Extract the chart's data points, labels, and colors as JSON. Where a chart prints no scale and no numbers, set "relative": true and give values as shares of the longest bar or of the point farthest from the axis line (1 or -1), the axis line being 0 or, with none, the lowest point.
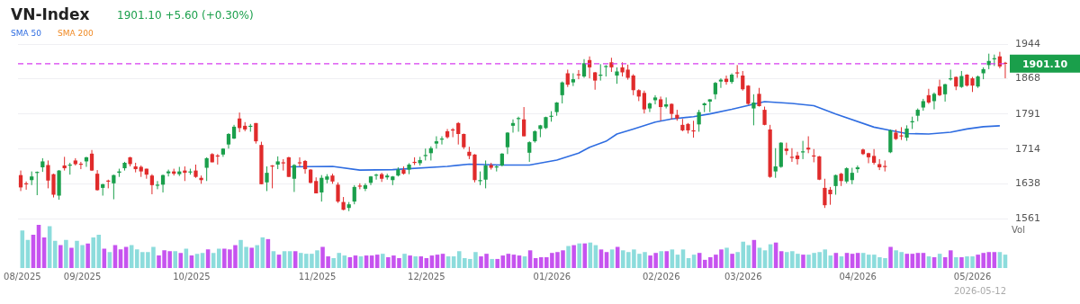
{
  "chart_data": [
    {
      "type": "candlestick",
      "title": "VN-Index",
      "subtitle": "1901.10 +5.60 (+0.30%)",
      "categories": [
        null,
        null,
        null,
        null,
        null,
        null,
        null,
        null,
        null,
        null,
        null,
        null,
        null,
        null,
        null,
        null,
        null,
        null,
        null,
        null,
        null,
        null,
        null,
        null,
        null,
        null,
        null,
        null,
        null,
        null,
        null,
        null,
        null,
        null,
        null,
        null,
        null,
        null,
        null,
        null,
        null,
        null,
        null,
        null,
        null,
        null,
        null,
        null,
        null,
        null,
        null,
        null,
        null,
        null,
        null,
        null,
        null,
        null,
        null,
        null,
        null,
        null,
        null,
        null,
        null,
        null,
        null,
        null,
        null,
        null,
        null,
        null,
        null,
        null,
        null,
        null,
        null,
        null,
        null,
        null,
        null,
        null,
        null,
        null,
        null,
        null,
        null,
        null,
        null,
        null,
        null,
        null,
        null,
        null,
        null,
        null,
        null,
        null,
        null,
        null,
        null,
        null,
        null,
        null,
        null,
        null,
        null,
        null,
        null,
        null,
        null,
        null,
        null,
        null,
        null,
        null,
        null,
        null,
        null,
        null,
        null,
        null,
        null,
        null,
        null,
        null,
        null,
        null,
        null,
        null,
        null,
        null,
        null,
        null,
        null,
        null,
        null,
        null,
        null,
        null,
        null,
        null,
        null,
        null,
        null,
        null,
        null,
        null,
        null,
        null,
        null,
        null,
        null,
        null,
        null,
        null,
        null,
        null,
        null,
        null,
        null,
        null,
        null,
        null,
        null,
        null,
        null,
        null,
        null,
        null,
        null,
        null,
        null,
        null,
        null,
        null,
        null,
        null,
        null,
        null,
        null
      ],
      "ohlc": [
        [
          1657,
          1667,
          1622,
          1630
        ],
        [
          1639,
          1643,
          1625,
          1637
        ],
        [
          1646,
          1665,
          1635,
          1654
        ],
        [
          1662,
          1665,
          1613,
          1664
        ],
        [
          1674,
          1694,
          1664,
          1687
        ],
        [
          1679,
          1689,
          1628,
          1645
        ],
        [
          1659,
          1660,
          1608,
          1614
        ],
        [
          1612,
          1668,
          1603,
          1667
        ],
        [
          1678,
          1697,
          1667,
          1672
        ],
        [
          1678,
          1684,
          1658,
          1680
        ],
        [
          1689,
          1694,
          1678,
          1681
        ],
        [
          1682,
          1686,
          1670,
          1680
        ],
        [
          1687,
          1697,
          1675,
          1696
        ],
        [
          1704,
          1712,
          1666,
          1667
        ],
        [
          1660,
          1668,
          1623,
          1624
        ],
        [
          1629,
          1638,
          1612,
          1637
        ],
        [
          1645,
          1647,
          1628,
          1643
        ],
        [
          1639,
          1658,
          1604,
          1657
        ],
        [
          1662,
          1671,
          1653,
          1665
        ],
        [
          1672,
          1686,
          1667,
          1684
        ],
        [
          1696,
          1697,
          1676,
          1681
        ],
        [
          1676,
          1684,
          1663,
          1670
        ],
        [
          1675,
          1678,
          1653,
          1665
        ],
        [
          1671,
          1671,
          1649,
          1658
        ],
        [
          1656,
          1659,
          1615,
          1635
        ],
        [
          1634,
          1644,
          1626,
          1636
        ],
        [
          1636,
          1658,
          1619,
          1657
        ],
        [
          1661,
          1669,
          1654,
          1665
        ],
        [
          1665,
          1671,
          1656,
          1660
        ],
        [
          1659,
          1675,
          1655,
          1665
        ],
        [
          1667,
          1676,
          1644,
          1662
        ],
        [
          1663,
          1671,
          1658,
          1665
        ],
        [
          1667,
          1680,
          1651,
          1653
        ],
        [
          1651,
          1656,
          1638,
          1646
        ],
        [
          1673,
          1696,
          1644,
          1694
        ],
        [
          1703,
          1705,
          1685,
          1685
        ],
        [
          1700,
          1703,
          1680,
          1698
        ],
        [
          1702,
          1716,
          1697,
          1715
        ],
        [
          1724,
          1749,
          1715,
          1747
        ],
        [
          1737,
          1767,
          1736,
          1763
        ],
        [
          1781,
          1794,
          1751,
          1760
        ],
        [
          1765,
          1773,
          1753,
          1757
        ],
        [
          1764,
          1769,
          1752,
          1765
        ],
        [
          1771,
          1771,
          1726,
          1731
        ],
        [
          1723,
          1730,
          1637,
          1637
        ],
        [
          1641,
          1676,
          1622,
          1662
        ],
        [
          1678,
          1679,
          1628,
          1676
        ],
        [
          1680,
          1698,
          1670,
          1687
        ],
        [
          1685,
          1692,
          1667,
          1684
        ],
        [
          1696,
          1697,
          1653,
          1653
        ],
        [
          1649,
          1681,
          1620,
          1679
        ],
        [
          1685,
          1696,
          1676,
          1684
        ],
        [
          1688,
          1690,
          1660,
          1670
        ],
        [
          1669,
          1670,
          1639,
          1640
        ],
        [
          1644,
          1652,
          1617,
          1617
        ],
        [
          1619,
          1657,
          1599,
          1651
        ],
        [
          1647,
          1659,
          1639,
          1654
        ],
        [
          1656,
          1660,
          1638,
          1643
        ],
        [
          1636,
          1641,
          1596,
          1599
        ],
        [
          1598,
          1609,
          1580,
          1581
        ],
        [
          1585,
          1598,
          1578,
          1593
        ],
        [
          1599,
          1635,
          1593,
          1631
        ],
        [
          1634,
          1639,
          1626,
          1632
        ],
        [
          1627,
          1639,
          1622,
          1635
        ],
        [
          1640,
          1655,
          1635,
          1654
        ],
        [
          1657,
          1660,
          1647,
          1658
        ],
        [
          1659,
          1662,
          1642,
          1649
        ],
        [
          1652,
          1660,
          1647,
          1656
        ],
        [
          1646,
          1655,
          1635,
          1654
        ],
        [
          1656,
          1674,
          1654,
          1669
        ],
        [
          1669,
          1676,
          1658,
          1660
        ],
        [
          1669,
          1683,
          1659,
          1680
        ],
        [
          1686,
          1696,
          1679,
          1685
        ],
        [
          1683,
          1697,
          1678,
          1690
        ],
        [
          1700,
          1715,
          1689,
          1701
        ],
        [
          1705,
          1720,
          1689,
          1716
        ],
        [
          1726,
          1742,
          1715,
          1731
        ],
        [
          1736,
          1742,
          1724,
          1737
        ],
        [
          1753,
          1758,
          1737,
          1740
        ],
        [
          1757,
          1760,
          1740,
          1755
        ],
        [
          1771,
          1773,
          1724,
          1747
        ],
        [
          1747,
          1748,
          1714,
          1718
        ],
        [
          1708,
          1719,
          1692,
          1699
        ],
        [
          1702,
          1703,
          1641,
          1646
        ],
        [
          1645,
          1665,
          1635,
          1646
        ],
        [
          1647,
          1689,
          1628,
          1678
        ],
        [
          1679,
          1684,
          1669,
          1673
        ],
        [
          1675,
          1678,
          1665,
          1676
        ],
        [
          1678,
          1705,
          1676,
          1704
        ],
        [
          1718,
          1751,
          1703,
          1750
        ],
        [
          1765,
          1779,
          1750,
          1771
        ],
        [
          1781,
          1785,
          1752,
          1782
        ],
        [
          1779,
          1806,
          1742,
          1742
        ],
        [
          1706,
          1731,
          1686,
          1729
        ],
        [
          1731,
          1755,
          1728,
          1753
        ],
        [
          1758,
          1767,
          1740,
          1766
        ],
        [
          1760,
          1785,
          1758,
          1784
        ],
        [
          1786,
          1797,
          1774,
          1787
        ],
        [
          1795,
          1817,
          1787,
          1816
        ],
        [
          1832,
          1862,
          1814,
          1860
        ],
        [
          1880,
          1888,
          1850,
          1855
        ],
        [
          1860,
          1880,
          1852,
          1867
        ],
        [
          1878,
          1887,
          1867,
          1877
        ],
        [
          1873,
          1911,
          1870,
          1902
        ],
        [
          1909,
          1917,
          1869,
          1893
        ],
        [
          1882,
          1883,
          1844,
          1864
        ],
        [
          1875,
          1900,
          1864,
          1877
        ],
        [
          1894,
          1898,
          1873,
          1896
        ],
        [
          1904,
          1914,
          1883,
          1893
        ],
        [
          1875,
          1893,
          1857,
          1884
        ],
        [
          1893,
          1904,
          1873,
          1882
        ],
        [
          1888,
          1899,
          1866,
          1870
        ],
        [
          1875,
          1878,
          1832,
          1843
        ],
        [
          1843,
          1845,
          1819,
          1829
        ],
        [
          1837,
          1842,
          1792,
          1801
        ],
        [
          1803,
          1816,
          1795,
          1814
        ],
        [
          1821,
          1832,
          1812,
          1827
        ],
        [
          1823,
          1829,
          1776,
          1806
        ],
        [
          1807,
          1827,
          1803,
          1812
        ],
        [
          1813,
          1814,
          1779,
          1791
        ],
        [
          1789,
          1800,
          1776,
          1781
        ],
        [
          1767,
          1780,
          1753,
          1755
        ],
        [
          1769,
          1771,
          1748,
          1755
        ],
        [
          1755,
          1776,
          1739,
          1753
        ],
        [
          1768,
          1800,
          1752,
          1795
        ],
        [
          1810,
          1816,
          1795,
          1814
        ],
        [
          1818,
          1823,
          1795,
          1823
        ],
        [
          1834,
          1861,
          1823,
          1859
        ],
        [
          1862,
          1869,
          1848,
          1866
        ],
        [
          1868,
          1875,
          1855,
          1861
        ],
        [
          1861,
          1880,
          1857,
          1877
        ],
        [
          1882,
          1898,
          1870,
          1881
        ],
        [
          1875,
          1885,
          1842,
          1845
        ],
        [
          1853,
          1854,
          1811,
          1813
        ],
        [
          1803,
          1834,
          1766,
          1816
        ],
        [
          1835,
          1848,
          1807,
          1808
        ],
        [
          1800,
          1807,
          1766,
          1767
        ],
        [
          1757,
          1767,
          1651,
          1653
        ],
        [
          1665,
          1716,
          1651,
          1676
        ],
        [
          1675,
          1729,
          1673,
          1728
        ],
        [
          1715,
          1728,
          1701,
          1710
        ],
        [
          1697,
          1716,
          1686,
          1696
        ],
        [
          1700,
          1708,
          1680,
          1692
        ],
        [
          1708,
          1732,
          1692,
          1709
        ],
        [
          1717,
          1742,
          1705,
          1713
        ],
        [
          1700,
          1714,
          1685,
          1699
        ],
        [
          1698,
          1699,
          1646,
          1647
        ],
        [
          1629,
          1649,
          1585,
          1591
        ],
        [
          1625,
          1631,
          1592,
          1615
        ],
        [
          1633,
          1658,
          1614,
          1657
        ],
        [
          1660,
          1662,
          1633,
          1644
        ],
        [
          1643,
          1674,
          1639,
          1672
        ],
        [
          1646,
          1673,
          1637,
          1662
        ],
        [
          1670,
          1678,
          1662,
          1674
        ],
        [
          1713,
          1715,
          1701,
          1703
        ],
        [
          1705,
          1706,
          1683,
          1696
        ],
        [
          1699,
          1714,
          1680,
          1684
        ],
        [
          1681,
          1692,
          1668,
          1674
        ],
        [
          1677,
          1689,
          1665,
          1676
        ],
        [
          1707,
          1757,
          1705,
          1755
        ],
        [
          1750,
          1757,
          1734,
          1736
        ],
        [
          1744,
          1762,
          1734,
          1743
        ],
        [
          1739,
          1766,
          1732,
          1759
        ],
        [
          1774,
          1785,
          1758,
          1775
        ],
        [
          1787,
          1803,
          1775,
          1800
        ],
        [
          1805,
          1824,
          1798,
          1819
        ],
        [
          1832,
          1846,
          1813,
          1816
        ],
        [
          1819,
          1838,
          1801,
          1835
        ],
        [
          1851,
          1866,
          1830,
          1832
        ],
        [
          1834,
          1857,
          1818,
          1856
        ],
        [
          1868,
          1888,
          1864,
          1869
        ],
        [
          1872,
          1873,
          1843,
          1851
        ],
        [
          1850,
          1885,
          1848,
          1874
        ],
        [
          1877,
          1878,
          1851,
          1853
        ],
        [
          1869,
          1872,
          1839,
          1853
        ],
        [
          1851,
          1875,
          1848,
          1873
        ],
        [
          1880,
          1893,
          1867,
          1889
        ],
        [
          1898,
          1923,
          1889,
          1907
        ],
        [
          1911,
          1921,
          1896,
          1913
        ],
        [
          1917,
          1927,
          1891,
          1895
        ],
        [
          1903,
          1905,
          1869,
          1901.1
        ]
      ],
      "colors": [
        "#e02b2b",
        "#e02b2b",
        "#1a9f4b",
        "#1a9f4b",
        "#1a9f4b",
        "#e02b2b",
        "#e02b2b",
        "#1a9f4b",
        "#e02b2b",
        "#1a9f4b",
        "#e02b2b",
        "#e02b2b",
        "#1a9f4b",
        "#e02b2b",
        "#e02b2b",
        "#1a9f4b",
        "#e02b2b",
        "#1a9f4b",
        "#1a9f4b",
        "#1a9f4b",
        "#e02b2b",
        "#e02b2b",
        "#e02b2b",
        "#e02b2b",
        "#e02b2b",
        "#1a9f4b",
        "#1a9f4b",
        "#1a9f4b",
        "#e02b2b",
        "#1a9f4b",
        "#e02b2b",
        "#1a9f4b",
        "#e02b2b",
        "#e02b2b",
        "#1a9f4b",
        "#e02b2b",
        "#e02b2b",
        "#1a9f4b",
        "#1a9f4b",
        "#1a9f4b",
        "#e02b2b",
        "#e02b2b",
        "#1a9f4b",
        "#e02b2b",
        "#e02b2b",
        "#1a9f4b",
        "#e02b2b",
        "#1a9f4b",
        "#e02b2b",
        "#e02b2b",
        "#1a9f4b",
        "#e02b2b",
        "#e02b2b",
        "#e02b2b",
        "#e02b2b",
        "#1a9f4b",
        "#1a9f4b",
        "#e02b2b",
        "#e02b2b",
        "#e02b2b",
        "#1a9f4b",
        "#1a9f4b",
        "#e02b2b",
        "#1a9f4b",
        "#1a9f4b",
        "#1a9f4b",
        "#e02b2b",
        "#1a9f4b",
        "#1a9f4b",
        "#1a9f4b",
        "#e02b2b",
        "#1a9f4b",
        "#e02b2b",
        "#1a9f4b",
        "#1a9f4b",
        "#1a9f4b",
        "#1a9f4b",
        "#1a9f4b",
        "#e02b2b",
        "#e02b2b",
        "#e02b2b",
        "#e02b2b",
        "#e02b2b",
        "#e02b2b",
        "#1a9f4b",
        "#1a9f4b",
        "#e02b2b",
        "#1a9f4b",
        "#1a9f4b",
        "#1a9f4b",
        "#1a9f4b",
        "#1a9f4b",
        "#e02b2b",
        "#1a9f4b",
        "#1a9f4b",
        "#1a9f4b",
        "#1a9f4b",
        "#1a9f4b",
        "#1a9f4b",
        "#1a9f4b",
        "#e02b2b",
        "#1a9f4b",
        "#e02b2b",
        "#1a9f4b",
        "#e02b2b",
        "#e02b2b",
        "#1a9f4b",
        "#1a9f4b",
        "#e02b2b",
        "#1a9f4b",
        "#e02b2b",
        "#e02b2b",
        "#e02b2b",
        "#e02b2b",
        "#e02b2b",
        "#1a9f4b",
        "#1a9f4b",
        "#e02b2b",
        "#1a9f4b",
        "#e02b2b",
        "#e02b2b",
        "#e02b2b",
        "#e02b2b",
        "#e02b2b",
        "#1a9f4b",
        "#1a9f4b",
        "#1a9f4b",
        "#1a9f4b",
        "#1a9f4b",
        "#e02b2b",
        "#1a9f4b",
        "#e02b2b",
        "#e02b2b",
        "#e02b2b",
        "#1a9f4b",
        "#e02b2b",
        "#e02b2b",
        "#e02b2b",
        "#1a9f4b",
        "#1a9f4b",
        "#e02b2b",
        "#e02b2b",
        "#e02b2b",
        "#1a9f4b",
        "#e02b2b",
        "#e02b2b",
        "#e02b2b",
        "#e02b2b",
        "#e02b2b",
        "#1a9f4b",
        "#e02b2b",
        "#1a9f4b",
        "#1a9f4b",
        "#1a9f4b",
        "#e02b2b",
        "#e02b2b",
        "#e02b2b",
        "#e02b2b",
        "#e02b2b",
        "#1a9f4b",
        "#e02b2b",
        "#e02b2b",
        "#1a9f4b",
        "#1a9f4b",
        "#1a9f4b",
        "#1a9f4b",
        "#e02b2b",
        "#1a9f4b",
        "#e02b2b",
        "#1a9f4b",
        "#1a9f4b",
        "#e02b2b",
        "#1a9f4b",
        "#e02b2b",
        "#e02b2b",
        "#1a9f4b",
        "#1a9f4b",
        "#1a9f4b",
        "#1a9f4b",
        "#e02b2b",
        "#e02b2b"
      ],
      "series": [
        {
          "name": "SMA 50",
          "type": "line",
          "color": "#2f6de1",
          "values": [
            null,
            null,
            null,
            null,
            null,
            null,
            null,
            null,
            null,
            null,
            null,
            null,
            null,
            null,
            null,
            null,
            null,
            null,
            null,
            null,
            null,
            null,
            null,
            null,
            null,
            null,
            null,
            null,
            null,
            null,
            null,
            null,
            null,
            null,
            null,
            null,
            null,
            null,
            null,
            null,
            null,
            null,
            null,
            null,
            null,
            null,
            null,
            null,
            null,
            1675,
            null,
            null,
            null,
            null,
            null,
            null,
            null,
            1676,
            null,
            null,
            null,
            null,
            1668,
            null,
            null,
            null,
            null,
            null,
            1669,
            null,
            null,
            null,
            null,
            null,
            null,
            null,
            null,
            null,
            1676,
            null,
            null,
            null,
            1681,
            null,
            null,
            null,
            null,
            null,
            1679,
            null,
            null,
            null,
            null,
            1679,
            null,
            null,
            null,
            null,
            1690,
            null,
            null,
            null,
            1705,
            null,
            1718,
            null,
            null,
            1731,
            null,
            1747,
            null,
            null,
            1758,
            null,
            null,
            null,
            1773,
            null,
            null,
            1780,
            null,
            null,
            null,
            1785,
            null,
            null,
            1791,
            null,
            null,
            null,
            1801,
            null,
            null,
            null,
            null,
            null,
            1818,
            null,
            null,
            null,
            null,
            1814,
            null,
            null,
            null,
            1809,
            null,
            null,
            null,
            1791,
            null,
            null,
            null,
            null,
            null,
            null,
            1762,
            null,
            null,
            1755,
            null,
            null,
            1748,
            null,
            null,
            null,
            1747,
            null,
            null,
            null,
            1751,
            null,
            null,
            1758,
            null,
            null,
            1763,
            null,
            null,
            1765,
            null
          ]
        },
        {
          "name": "SMA 200",
          "type": "line",
          "color": "#f08a24",
          "values": [
            null,
            null,
            null,
            null,
            null,
            null,
            null,
            null,
            null,
            null,
            null,
            null,
            null,
            null,
            null,
            null,
            null,
            null,
            null,
            null,
            null,
            null,
            null,
            null,
            null,
            null,
            null,
            null,
            null,
            null,
            null,
            null,
            null,
            null,
            null,
            null,
            null,
            null,
            null,
            null,
            null,
            null,
            null,
            null,
            null,
            null,
            null,
            null,
            null,
            null,
            null,
            null,
            null,
            null,
            null,
            null,
            null,
            null,
            null,
            null,
            null,
            null,
            null,
            null,
            null,
            null,
            null,
            null,
            null,
            null,
            null,
            null,
            null,
            null,
            null,
            null,
            null,
            null,
            null,
            null,
            null,
            null,
            null,
            null,
            null,
            null,
            null,
            null,
            null,
            null,
            null,
            null,
            null,
            null,
            null,
            null,
            null,
            null,
            null,
            null,
            null,
            null,
            null,
            null,
            null,
            null,
            null,
            null,
            null,
            null,
            null,
            null,
            null,
            null,
            null,
            null,
            null,
            null,
            null,
            null,
            null,
            null,
            null,
            null,
            null,
            null,
            null,
            null,
            null,
            null,
            null,
            null,
            null,
            null,
            null,
            null,
            null,
            null,
            null,
            null,
            null,
            null,
            null,
            null,
            null,
            null,
            null,
            null,
            null,
            null,
            null,
            null,
            null,
            null,
            null,
            null,
            null,
            null,
            null,
            null,
            null,
            null,
            null,
            null,
            null,
            null,
            null,
            null,
            null,
            null,
            null,
            null,
            null,
            null,
            null,
            null,
            null,
            null,
            null,
            null,
            null
          ]
        }
      ],
      "ref_lines": [
        {
          "axis": "y",
          "value": 1901.1,
          "label": "1901.10",
          "color": "#d63cf0",
          "line_style": "dashed"
        }
      ],
      "ylim": [
        1561,
        1944
      ],
      "yticks": [
        1561,
        1638,
        1714,
        1791,
        1868,
        1944
      ],
      "tick_labels": "y",
      "grid": "y",
      "legend": "top left"
    },
    {
      "type": "bar",
      "relative": true,
      "ylabel": "Vol",
      "annotations": [
        "2026-05-12"
      ],
      "categories": [
        "08/2025",
        null,
        null,
        null,
        null,
        null,
        null,
        null,
        null,
        null,
        null,
        "09/2025",
        null,
        null,
        null,
        null,
        null,
        null,
        null,
        null,
        null,
        null,
        null,
        null,
        null,
        null,
        null,
        null,
        null,
        null,
        null,
        "10/2025",
        null,
        null,
        null,
        null,
        null,
        null,
        null,
        null,
        null,
        null,
        null,
        null,
        null,
        null,
        null,
        null,
        null,
        null,
        null,
        null,
        null,
        null,
        "11/2025",
        null,
        null,
        null,
        null,
        null,
        null,
        null,
        null,
        null,
        null,
        null,
        null,
        null,
        null,
        null,
        null,
        null,
        null,
        null,
        "12/2025",
        null,
        null,
        null,
        null,
        null,
        null,
        null,
        null,
        null,
        null,
        null,
        null,
        null,
        null,
        null,
        null,
        null,
        null,
        null,
        null,
        null,
        null,
        "01/2026",
        null,
        null,
        null,
        null,
        null,
        null,
        null,
        null,
        null,
        null,
        null,
        null,
        null,
        null,
        null,
        null,
        null,
        null,
        null,
        "02/2026",
        null,
        null,
        null,
        null,
        null,
        null,
        null,
        null,
        null,
        null,
        null,
        null,
        null,
        null,
        "03/2026",
        null,
        null,
        null,
        null,
        null,
        null,
        null,
        null,
        null,
        null,
        null,
        null,
        null,
        null,
        null,
        null,
        null,
        null,
        null,
        null,
        "04/2026",
        null,
        null,
        null,
        null,
        null,
        null,
        null,
        null,
        null,
        null,
        null,
        null,
        null,
        null,
        null,
        null,
        null,
        null,
        null,
        null,
        "05/2026",
        null,
        null,
        null,
        null,
        null,
        null
      ],
      "values": [
        0.87,
        0.65,
        0.77,
        1,
        0.71,
        0.97,
        0.63,
        0.53,
        0.65,
        0.47,
        0.63,
        0.53,
        0.57,
        0.71,
        0.77,
        0.45,
        0.37,
        0.53,
        0.43,
        0.49,
        0.53,
        0.43,
        0.37,
        0.37,
        0.49,
        0.29,
        0.41,
        0.39,
        0.39,
        0.35,
        0.45,
        0.29,
        0.33,
        0.35,
        0.43,
        0.35,
        0.45,
        0.45,
        0.43,
        0.53,
        0.65,
        0.49,
        0.47,
        0.53,
        0.71,
        0.67,
        0.39,
        0.31,
        0.39,
        0.39,
        0.39,
        0.35,
        0.33,
        0.33,
        0.41,
        0.49,
        0.27,
        0.23,
        0.35,
        0.29,
        0.25,
        0.29,
        0.27,
        0.29,
        0.29,
        0.31,
        0.33,
        0.25,
        0.29,
        0.23,
        0.33,
        0.29,
        0.27,
        0.27,
        0.23,
        0.29,
        0.31,
        0.33,
        0.27,
        0.27,
        0.39,
        0.23,
        0.21,
        0.37,
        0.27,
        0.33,
        0.21,
        0.21,
        0.29,
        0.33,
        0.31,
        0.29,
        0.27,
        0.41,
        0.23,
        0.25,
        0.25,
        0.35,
        0.37,
        0.41,
        0.51,
        0.53,
        0.57,
        0.57,
        0.59,
        0.53,
        0.43,
        0.37,
        0.43,
        0.49,
        0.41,
        0.37,
        0.43,
        0.33,
        0.37,
        0.29,
        0.35,
        0.39,
        0.39,
        0.43,
        0.31,
        0.43,
        0.23,
        0.31,
        0.35,
        0.19,
        0.25,
        0.31,
        0.43,
        0.47,
        0.33,
        0.37,
        0.61,
        0.53,
        0.65,
        0.47,
        0.41,
        0.55,
        0.59,
        0.39,
        0.37,
        0.39,
        0.33,
        0.31,
        0.31,
        0.35,
        0.37,
        0.43,
        0.29,
        0.35,
        0.27,
        0.35,
        0.33,
        0.35,
        0.35,
        0.31,
        0.31,
        0.25,
        0.23,
        0.49,
        0.41,
        0.37,
        0.33,
        0.33,
        0.35,
        0.35,
        0.27,
        0.25,
        0.33,
        0.25,
        0.41,
        0.25,
        0.25,
        0.27,
        0.27,
        0.31,
        0.35,
        0.37,
        0.37,
        0.37,
        0.31
      ],
      "colors": [
        "#8cdcdc",
        "#8cdcdc",
        "#c653ef",
        "#c653ef",
        "#c653ef",
        "#8cdcdc",
        "#8cdcdc",
        "#c653ef",
        "#8cdcdc",
        "#c653ef",
        "#8cdcdc",
        "#8cdcdc",
        "#c653ef",
        "#8cdcdc",
        "#8cdcdc",
        "#c653ef",
        "#8cdcdc",
        "#c653ef",
        "#c653ef",
        "#c653ef",
        "#8cdcdc",
        "#8cdcdc",
        "#8cdcdc",
        "#8cdcdc",
        "#8cdcdc",
        "#c653ef",
        "#c653ef",
        "#c653ef",
        "#8cdcdc",
        "#c653ef",
        "#8cdcdc",
        "#c653ef",
        "#8cdcdc",
        "#8cdcdc",
        "#c653ef",
        "#8cdcdc",
        "#8cdcdc",
        "#c653ef",
        "#c653ef",
        "#c653ef",
        "#8cdcdc",
        "#8cdcdc",
        "#c653ef",
        "#8cdcdc",
        "#8cdcdc",
        "#c653ef",
        "#8cdcdc",
        "#c653ef",
        "#8cdcdc",
        "#8cdcdc",
        "#c653ef",
        "#8cdcdc",
        "#8cdcdc",
        "#8cdcdc",
        "#8cdcdc",
        "#c653ef",
        "#c653ef",
        "#8cdcdc",
        "#8cdcdc",
        "#8cdcdc",
        "#c653ef",
        "#c653ef",
        "#8cdcdc",
        "#c653ef",
        "#c653ef",
        "#c653ef",
        "#8cdcdc",
        "#c653ef",
        "#c653ef",
        "#c653ef",
        "#8cdcdc",
        "#c653ef",
        "#8cdcdc",
        "#c653ef",
        "#c653ef",
        "#c653ef",
        "#c653ef",
        "#c653ef",
        "#8cdcdc",
        "#8cdcdc",
        "#8cdcdc",
        "#8cdcdc",
        "#8cdcdc",
        "#8cdcdc",
        "#c653ef",
        "#c653ef",
        "#8cdcdc",
        "#c653ef",
        "#c653ef",
        "#c653ef",
        "#c653ef",
        "#c653ef",
        "#8cdcdc",
        "#c653ef",
        "#c653ef",
        "#c653ef",
        "#c653ef",
        "#c653ef",
        "#c653ef",
        "#c653ef",
        "#8cdcdc",
        "#c653ef",
        "#8cdcdc",
        "#c653ef",
        "#8cdcdc",
        "#8cdcdc",
        "#c653ef",
        "#c653ef",
        "#8cdcdc",
        "#c653ef",
        "#8cdcdc",
        "#8cdcdc",
        "#8cdcdc",
        "#8cdcdc",
        "#8cdcdc",
        "#c653ef",
        "#c653ef",
        "#8cdcdc",
        "#c653ef",
        "#8cdcdc",
        "#8cdcdc",
        "#8cdcdc",
        "#8cdcdc",
        "#8cdcdc",
        "#c653ef",
        "#c653ef",
        "#c653ef",
        "#c653ef",
        "#c653ef",
        "#8cdcdc",
        "#c653ef",
        "#8cdcdc",
        "#8cdcdc",
        "#8cdcdc",
        "#c653ef",
        "#8cdcdc",
        "#8cdcdc",
        "#8cdcdc",
        "#c653ef",
        "#c653ef",
        "#8cdcdc",
        "#8cdcdc",
        "#8cdcdc",
        "#c653ef",
        "#8cdcdc",
        "#8cdcdc",
        "#8cdcdc",
        "#8cdcdc",
        "#8cdcdc",
        "#c653ef",
        "#8cdcdc",
        "#c653ef",
        "#c653ef",
        "#c653ef",
        "#8cdcdc",
        "#8cdcdc",
        "#8cdcdc",
        "#8cdcdc",
        "#8cdcdc",
        "#c653ef",
        "#8cdcdc",
        "#8cdcdc",
        "#c653ef",
        "#c653ef",
        "#c653ef",
        "#c653ef",
        "#8cdcdc",
        "#c653ef",
        "#8cdcdc",
        "#c653ef",
        "#c653ef",
        "#8cdcdc",
        "#c653ef",
        "#8cdcdc",
        "#8cdcdc",
        "#c653ef",
        "#c653ef",
        "#c653ef",
        "#c653ef",
        "#8cdcdc",
        "#8cdcdc"
      ],
      "tick_labels": "x",
      "grid": false
    }
  ]
}
